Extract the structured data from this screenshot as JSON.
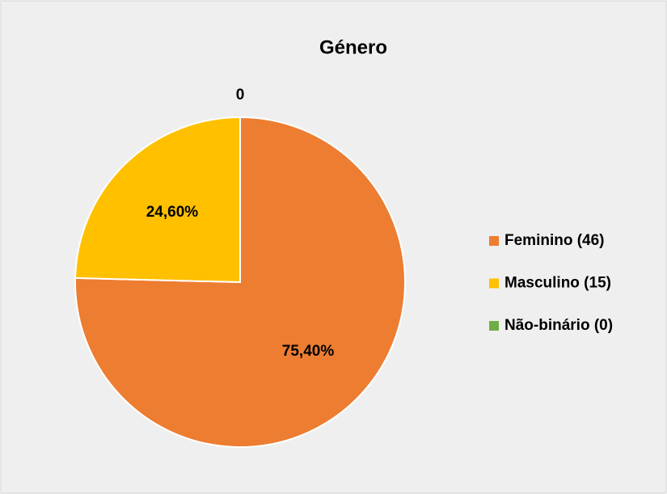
{
  "chart_data": {
    "type": "pie",
    "title": "Género",
    "categories": [
      "Feminino (46)",
      "Masculino (15)",
      "Não-binário (0)"
    ],
    "values": [
      75.4,
      24.6,
      0
    ],
    "value_labels": [
      "75,40%",
      "24,60%",
      "0"
    ],
    "colors": [
      "#ed7d31",
      "#ffc000",
      "#70ad47"
    ],
    "legend": "right"
  }
}
